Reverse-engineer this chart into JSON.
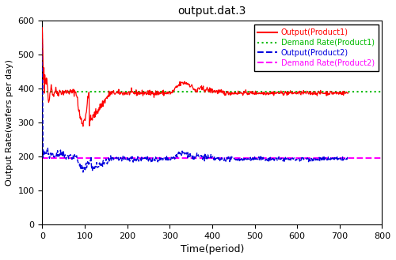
{
  "title": "output.dat.3",
  "xlabel": "Time(period)",
  "ylabel": "Output Rate(wafers per day)",
  "xlim": [
    0,
    800
  ],
  "ylim": [
    0,
    600
  ],
  "xticks": [
    0,
    100,
    200,
    300,
    400,
    500,
    600,
    700,
    800
  ],
  "yticks": [
    0,
    100,
    200,
    300,
    400,
    500,
    600
  ],
  "demand_rate_product1": 390,
  "demand_rate_product2": 195,
  "output1_steady": 387,
  "output2_steady": 192,
  "legend": [
    {
      "label": "Output(Product1)",
      "color": "#ff0000",
      "linestyle": "solid"
    },
    {
      "label": "Demand Rate(Product1)",
      "color": "#00bb00",
      "linestyle": "dotted"
    },
    {
      "label": "Output(Product2)",
      "color": "#0000dd",
      "linestyle": "dashed"
    },
    {
      "label": "Demand Rate(Product2)",
      "color": "#ff00ff",
      "linestyle": "dashed"
    }
  ],
  "background_color": "#ffffff",
  "figsize": [
    5.0,
    3.29
  ],
  "dpi": 100
}
